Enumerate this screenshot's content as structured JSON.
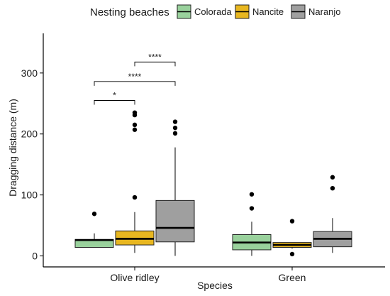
{
  "chart_data": {
    "type": "boxplot",
    "xlabel": "Species",
    "ylabel": "Dragging distance (m)",
    "ylim": [
      -18,
      365
    ],
    "yticks": [
      0,
      100,
      200,
      300
    ],
    "y_tick_labels": [
      "0",
      "100",
      "200",
      "300"
    ],
    "categories": [
      "Olive ridley",
      "Green"
    ],
    "legend": {
      "title": "Nesting beaches",
      "placement": "top",
      "entries": [
        "Colorada",
        "Nancite",
        "Naranjo"
      ]
    },
    "series": [
      {
        "name": "Colorada",
        "color": "#99d19c",
        "boxes": [
          {
            "category": "Olive ridley",
            "min": 14,
            "q1": 14,
            "median": 26,
            "q3": 27,
            "max": 37,
            "outliers": [
              69
            ]
          },
          {
            "category": "Green",
            "min": 0,
            "q1": 10,
            "median": 22,
            "q3": 35,
            "max": 56,
            "outliers": [
              78,
              101
            ]
          }
        ]
      },
      {
        "name": "Nancite",
        "color": "#e8b720",
        "boxes": [
          {
            "category": "Olive ridley",
            "min": 5,
            "q1": 18,
            "median": 28,
            "q3": 41,
            "max": 72,
            "outliers": [
              96,
              207,
              215,
              231,
              235
            ]
          },
          {
            "category": "Green",
            "min": 12,
            "q1": 14,
            "median": 18,
            "q3": 22,
            "max": 22,
            "outliers": [
              3,
              57
            ]
          }
        ]
      },
      {
        "name": "Naranjo",
        "color": "#9f9f9f",
        "boxes": [
          {
            "category": "Olive ridley",
            "min": 0,
            "q1": 23,
            "median": 46,
            "q3": 91,
            "max": 178,
            "outliers": [
              201,
              210,
              220
            ]
          },
          {
            "category": "Green",
            "min": 5,
            "q1": 15,
            "median": 28,
            "q3": 40,
            "max": 62,
            "outliers": [
              111,
              129
            ]
          }
        ]
      }
    ],
    "annotations": [
      {
        "label": "*",
        "category": "Olive ridley",
        "from": 0,
        "to": 1,
        "y": 255
      },
      {
        "label": "****",
        "category": "Olive ridley",
        "from": 0,
        "to": 2,
        "y": 286
      },
      {
        "label": "****",
        "category": "Olive ridley",
        "from": 1,
        "to": 2,
        "y": 318
      }
    ]
  }
}
